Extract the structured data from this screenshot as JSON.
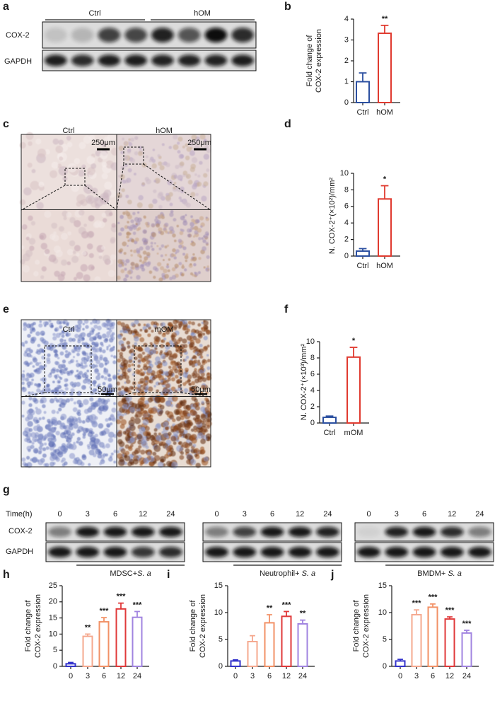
{
  "panel_labels": [
    "a",
    "b",
    "c",
    "d",
    "e",
    "f",
    "g",
    "h",
    "i",
    "j"
  ],
  "blot_a": {
    "groups": [
      "Ctrl",
      "hOM"
    ],
    "rows": [
      "COX-2",
      "GAPDH"
    ]
  },
  "histology_c": {
    "groups": [
      "Ctrl",
      "hOM"
    ],
    "scale_bars": [
      "250μm",
      "250μm"
    ]
  },
  "histology_e": {
    "groups": [
      "Ctrl",
      "mOM"
    ],
    "scale_bars": [
      "50μm",
      "50μm"
    ]
  },
  "blot_g": {
    "time_title": "Time(h)",
    "rows": [
      "COX-2",
      "GAPDH"
    ],
    "blocks": [
      {
        "times": [
          "0",
          "3",
          "6",
          "12",
          "24"
        ],
        "label": "MDSC+",
        "label_italic": "S. a"
      },
      {
        "times": [
          "0",
          "3",
          "6",
          "12",
          "24"
        ],
        "label": "Neutrophil+ ",
        "label_italic": "S. a"
      },
      {
        "times": [
          "0",
          "3",
          "6",
          "12",
          "24"
        ],
        "label": "BMDM+ ",
        "label_italic": "S. a"
      }
    ]
  },
  "chart_data": [
    {
      "type": "bar",
      "ylabel": [
        "Fold change of",
        "COX-2 expression"
      ],
      "categories": [
        "Ctrl",
        "hOM"
      ],
      "values": [
        1.0,
        3.32
      ],
      "errors": [
        0.42,
        0.38
      ],
      "colors": [
        "#2b4fa0",
        "#e03a2f"
      ],
      "annotations": [
        null,
        "**"
      ],
      "ylim": [
        0,
        4
      ],
      "yticks": [
        0,
        1,
        2,
        3,
        4
      ]
    },
    {
      "type": "bar",
      "ylabel": [
        "N. COX-2⁺(×10²)/mm²"
      ],
      "categories": [
        "Ctrl",
        "hOM"
      ],
      "values": [
        0.6,
        6.9
      ],
      "errors": [
        0.3,
        1.6
      ],
      "colors": [
        "#2b4fa0",
        "#e03a2f"
      ],
      "annotations": [
        null,
        "*"
      ],
      "ylim": [
        0,
        10
      ],
      "yticks": [
        0,
        2,
        4,
        6,
        8,
        10
      ]
    },
    {
      "type": "bar",
      "ylabel": [
        "N. COX-2⁺(×10³)/mm²"
      ],
      "categories": [
        "Ctrl",
        "mOM"
      ],
      "values": [
        0.7,
        8.1
      ],
      "errors": [
        0.15,
        1.2
      ],
      "colors": [
        "#2b4fa0",
        "#e03a2f"
      ],
      "annotations": [
        null,
        "*"
      ],
      "ylim": [
        0,
        10
      ],
      "yticks": [
        0,
        2,
        4,
        6,
        8,
        10
      ]
    },
    {
      "type": "bar",
      "ylabel": [
        "Fold change of",
        "COX-2 expression"
      ],
      "categories": [
        "0",
        "3",
        "6",
        "12",
        "24"
      ],
      "values": [
        0.8,
        9.3,
        13.8,
        17.8,
        15.2
      ],
      "errors": [
        0.4,
        0.7,
        1.3,
        1.8,
        1.8
      ],
      "colors": [
        "#3333cc",
        "#f5a88e",
        "#f29166",
        "#e0393a",
        "#a184e0"
      ],
      "annotations": [
        null,
        "**",
        "***",
        "***",
        "***"
      ],
      "ylim": [
        0,
        25
      ],
      "yticks": [
        0,
        5,
        10,
        15,
        20,
        25
      ]
    },
    {
      "type": "bar",
      "ylabel": [
        "Fold change of",
        "COX-2 expression"
      ],
      "categories": [
        "0",
        "3",
        "6",
        "12",
        "24"
      ],
      "values": [
        1.0,
        4.6,
        8.1,
        9.3,
        7.9
      ],
      "errors": [
        0.2,
        1.1,
        1.5,
        0.9,
        0.7
      ],
      "colors": [
        "#3333cc",
        "#f5a88e",
        "#f29166",
        "#e0393a",
        "#a184e0"
      ],
      "annotations": [
        null,
        null,
        "**",
        "***",
        "**"
      ],
      "ylim": [
        0,
        15
      ],
      "yticks": [
        0,
        5,
        10,
        15
      ]
    },
    {
      "type": "bar",
      "ylabel": [
        "Fold change of",
        "COX-2 expression"
      ],
      "categories": [
        "0",
        "3",
        "6",
        "12",
        "24"
      ],
      "values": [
        1.0,
        9.6,
        11.0,
        8.8,
        6.2
      ],
      "errors": [
        0.3,
        0.9,
        0.6,
        0.4,
        0.5
      ],
      "colors": [
        "#3333cc",
        "#f5a88e",
        "#f29166",
        "#e0393a",
        "#a184e0"
      ],
      "annotations": [
        null,
        "***",
        "***",
        "***",
        "***"
      ],
      "ylim": [
        0,
        15
      ],
      "yticks": [
        0,
        5,
        10,
        15
      ]
    }
  ]
}
